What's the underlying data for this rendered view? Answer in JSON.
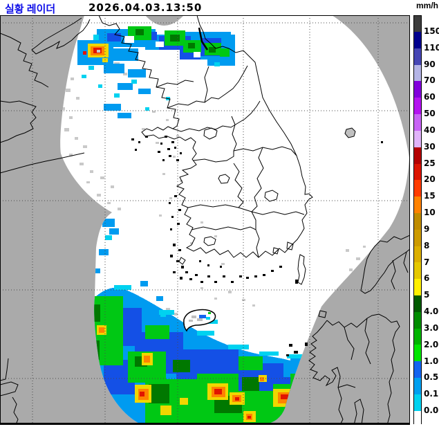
{
  "header": {
    "title": "실황 레이더",
    "timestamp": "2026.04.03.13:50",
    "unit_label": "mm/h"
  },
  "legend": {
    "unit": "mm/h",
    "segments": [
      {
        "color": "#3c3c3c",
        "label": "150"
      },
      {
        "color": "#00008e",
        "label": "110"
      },
      {
        "color": "#4646b4",
        "label": "90"
      },
      {
        "color": "#b4b4e6",
        "label": "70"
      },
      {
        "color": "#8200dc",
        "label": "60"
      },
      {
        "color": "#b414f0",
        "label": "50"
      },
      {
        "color": "#c864f5",
        "label": "40"
      },
      {
        "color": "#e1b4fa",
        "label": "30"
      },
      {
        "color": "#b40000",
        "label": "25"
      },
      {
        "color": "#dc1400",
        "label": "20"
      },
      {
        "color": "#ff3c00",
        "label": "15"
      },
      {
        "color": "#ff8200",
        "label": "10"
      },
      {
        "color": "#c08c00",
        "label": "9"
      },
      {
        "color": "#cd9b00",
        "label": "8"
      },
      {
        "color": "#dcaf00",
        "label": "7"
      },
      {
        "color": "#e6c800",
        "label": "6"
      },
      {
        "color": "#fff000",
        "label": "5"
      },
      {
        "color": "#005a00",
        "label": "4.0"
      },
      {
        "color": "#008c00",
        "label": "3.0"
      },
      {
        "color": "#00b400",
        "label": "2.0"
      },
      {
        "color": "#00e600",
        "label": "1.0"
      },
      {
        "color": "#1464f0",
        "label": "0.5"
      },
      {
        "color": "#00a0f0",
        "label": "0.1"
      },
      {
        "color": "#00d2f0",
        "label": "0.0"
      },
      {
        "color": "#ffffff",
        "label": ""
      }
    ]
  },
  "colors": {
    "title_blue": "#0f0fe8",
    "map_background": "#aaaaaa",
    "radar_coverage": "#ffffff",
    "coastline": "#000000",
    "gridline": "#4a4a4a",
    "clutter_gray": "#c9c9c9"
  }
}
